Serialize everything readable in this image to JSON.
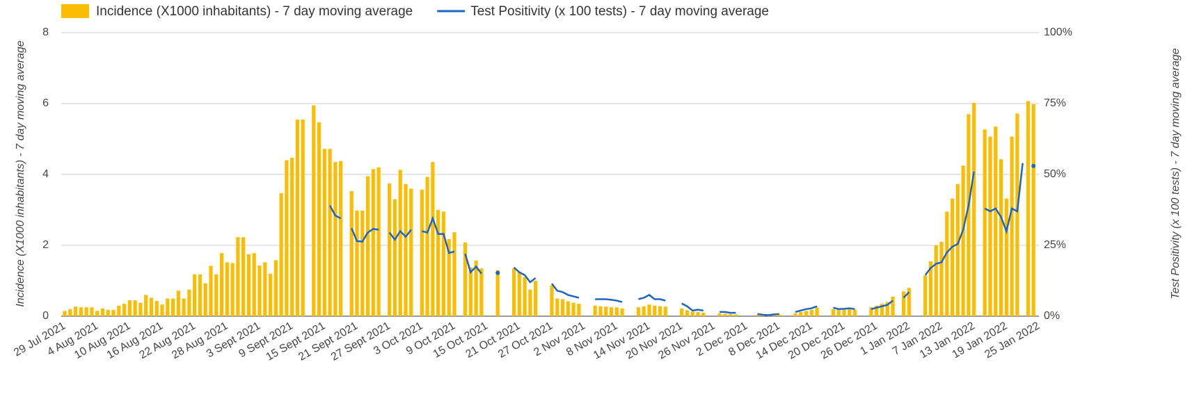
{
  "chart_data": {
    "type": "bar_line",
    "y_label": "Incidence (X1000 inhabitants) - 7 day moving average",
    "y2_label": "Test Positivity (x 100 tests) - 7 day moving average",
    "categories": [
      "29 Jul 2021",
      null,
      null,
      null,
      null,
      null,
      "4 Aug 2021",
      null,
      null,
      null,
      null,
      null,
      "10 Aug 2021",
      null,
      null,
      null,
      null,
      null,
      "16 Aug 2021",
      null,
      null,
      null,
      null,
      null,
      "22 Aug 2021",
      null,
      null,
      null,
      null,
      null,
      "28 Aug 2021",
      null,
      null,
      null,
      null,
      null,
      "3 Sept 2021",
      null,
      null,
      null,
      null,
      null,
      "9 Sept 2021",
      null,
      null,
      null,
      null,
      null,
      "15 Sept 2021",
      null,
      null,
      null,
      null,
      null,
      "21 Sept 2021",
      null,
      null,
      null,
      null,
      null,
      "27 Sept 2021",
      null,
      null,
      null,
      null,
      null,
      "3 Oct 2021",
      null,
      null,
      null,
      null,
      null,
      "9 Oct 2021",
      null,
      null,
      null,
      null,
      null,
      "15 Oct 2021",
      null,
      null,
      null,
      null,
      null,
      "21 Oct 2021",
      null,
      null,
      null,
      null,
      null,
      "27 Oct 2021",
      null,
      null,
      null,
      null,
      null,
      "2 Nov 2021",
      null,
      null,
      null,
      null,
      null,
      "8 Nov 2021",
      null,
      null,
      null,
      null,
      null,
      "14 Nov 2021",
      null,
      null,
      null,
      null,
      null,
      "20 Nov 2021",
      null,
      null,
      null,
      null,
      null,
      "26 Nov 2021",
      null,
      null,
      null,
      null,
      null,
      "2 Dec 2021",
      null,
      null,
      null,
      null,
      null,
      "8 Dec 2021",
      null,
      null,
      null,
      null,
      null,
      "14 Dec 2021",
      null,
      null,
      null,
      null,
      null,
      "20 Dec 2021",
      null,
      null,
      null,
      null,
      null,
      "26 Dec 2021",
      null,
      null,
      null,
      null,
      null,
      "1 Jan 2022",
      null,
      null,
      null,
      null,
      null,
      "7 Jan 2022",
      null,
      null,
      null,
      null,
      null,
      "13 Jan 2022",
      null,
      null,
      null,
      null,
      null,
      "19 Jan 2022",
      null,
      null,
      null,
      null,
      null,
      "25 Jan 2022"
    ],
    "series": [
      {
        "name": "Incidence (X1000 inhabitants) - 7 day moving average",
        "color": "#fbbc04",
        "values": [
          0.15,
          0.2,
          0.27,
          0.25,
          0.25,
          0.25,
          0.15,
          0.22,
          0.18,
          0.18,
          0.3,
          0.35,
          0.45,
          0.45,
          0.38,
          0.6,
          0.52,
          0.43,
          0.33,
          0.5,
          0.5,
          0.72,
          0.5,
          0.75,
          1.18,
          1.18,
          0.93,
          1.42,
          1.18,
          1.78,
          1.52,
          1.5,
          2.23,
          2.23,
          1.75,
          1.78,
          1.43,
          1.52,
          1.2,
          1.58,
          3.47,
          4.4,
          4.47,
          5.55,
          5.55,
          null,
          5.95,
          5.47,
          4.72,
          4.72,
          4.35,
          4.38,
          null,
          3.53,
          2.98,
          2.98,
          3.95,
          4.15,
          4.2,
          null,
          3.75,
          3.3,
          4.13,
          3.73,
          3.6,
          null,
          3.57,
          3.93,
          4.35,
          3.0,
          2.95,
          2.18,
          2.37,
          null,
          2.08,
          1.38,
          1.57,
          1.35,
          null,
          null,
          1.3,
          null,
          null,
          1.35,
          1.25,
          1.1,
          0.75,
          1.0,
          null,
          null,
          0.87,
          0.5,
          0.48,
          0.42,
          0.38,
          0.35,
          null,
          null,
          0.3,
          0.28,
          0.27,
          0.25,
          0.25,
          0.22,
          null,
          null,
          0.25,
          0.28,
          0.33,
          0.3,
          0.28,
          0.27,
          null,
          null,
          0.22,
          0.17,
          0.13,
          0.12,
          0.1,
          null,
          null,
          0.08,
          0.07,
          0.06,
          0.05,
          null,
          null,
          null,
          0.04,
          0.04,
          0.03,
          0.04,
          0.05,
          null,
          null,
          0.08,
          0.12,
          0.15,
          0.18,
          0.25,
          null,
          null,
          0.2,
          0.18,
          0.18,
          0.2,
          0.18,
          null,
          null,
          0.25,
          0.3,
          0.35,
          0.4,
          0.55,
          null,
          0.7,
          0.8,
          null,
          null,
          1.15,
          1.55,
          2.0,
          2.1,
          2.95,
          3.32,
          3.73,
          4.25,
          5.7,
          6.02,
          null,
          5.27,
          5.07,
          5.35,
          4.43,
          3.32,
          5.07,
          5.72,
          null,
          6.07,
          5.98,
          null
        ]
      },
      {
        "name": "Test Positivity (x 100 tests) - 7 day moving average",
        "color": "#1a66c2",
        "axis": "y2",
        "values": [
          null,
          null,
          null,
          null,
          null,
          null,
          null,
          null,
          null,
          null,
          null,
          null,
          null,
          null,
          null,
          null,
          null,
          null,
          null,
          null,
          null,
          null,
          null,
          null,
          null,
          null,
          null,
          null,
          null,
          null,
          null,
          null,
          null,
          null,
          null,
          null,
          null,
          null,
          null,
          null,
          null,
          null,
          null,
          null,
          null,
          null,
          null,
          null,
          null,
          39,
          35.5,
          34.5,
          null,
          31,
          26.5,
          26.3,
          29.5,
          30.8,
          30.5,
          null,
          29.5,
          27,
          30,
          28,
          30.5,
          null,
          30,
          29.5,
          34.5,
          29,
          29,
          22.3,
          22.8,
          null,
          22,
          15.5,
          17.5,
          15,
          null,
          null,
          15.3,
          null,
          null,
          17.2,
          15.5,
          14.5,
          12,
          13.5,
          null,
          null,
          11.5,
          9,
          8.5,
          7.5,
          7,
          6.5,
          null,
          null,
          6,
          6,
          6,
          5.8,
          5.5,
          5,
          null,
          null,
          6,
          6.5,
          7.5,
          6,
          6,
          5.5,
          null,
          null,
          4.5,
          3.5,
          2,
          2.3,
          2,
          null,
          null,
          1.5,
          1.5,
          1.2,
          1.2,
          null,
          null,
          null,
          0.8,
          0.5,
          0.4,
          0.6,
          0.8,
          null,
          null,
          1.5,
          2,
          2.5,
          2.8,
          3.5,
          null,
          null,
          3,
          2.5,
          2.6,
          2.8,
          2.5,
          null,
          null,
          2.5,
          3,
          3.5,
          4,
          5.5,
          null,
          6.5,
          8.5,
          null,
          null,
          14.5,
          17,
          18.5,
          19,
          22.5,
          24.5,
          25.5,
          30.5,
          39,
          51,
          null,
          38,
          37,
          38,
          35,
          30,
          38,
          37,
          54,
          null,
          53,
          null
        ]
      }
    ],
    "ylim": [
      0,
      8
    ],
    "yticks": [
      0,
      2,
      4,
      6,
      8
    ],
    "y2lim": [
      0,
      100
    ],
    "y2ticks": [
      {
        "value": 0,
        "label": "0%"
      },
      {
        "value": 25,
        "label": "25%"
      },
      {
        "value": 50,
        "label": "50%"
      },
      {
        "value": 75,
        "label": "75%"
      },
      {
        "value": 100,
        "label": "100%"
      }
    ],
    "grid": true,
    "legend": "top"
  }
}
